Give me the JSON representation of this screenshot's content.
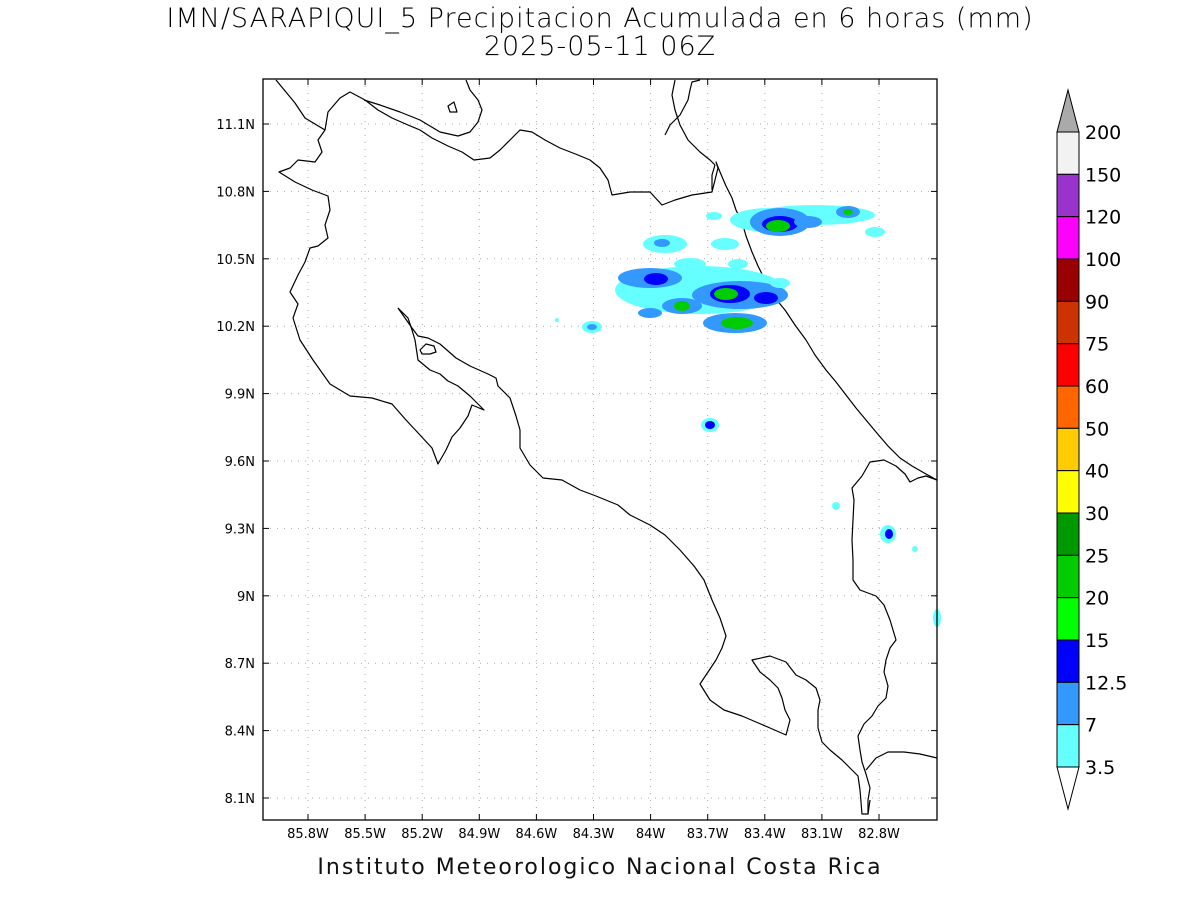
{
  "title": {
    "line1": "IMN/SARAPIQUI_5 Precipitacion Acumulada en 6 horas (mm)",
    "line2": "2025-05-11 06Z"
  },
  "map": {
    "lon_labels": [
      "85.8W",
      "85.5W",
      "85.2W",
      "84.9W",
      "84.6W",
      "84.3W",
      "84W",
      "83.7W",
      "83.4W",
      "83.1W",
      "82.8W"
    ],
    "lat_labels": [
      "11.1N",
      "10.8N",
      "10.5N",
      "10.2N",
      "9.9N",
      "9.6N",
      "9.3N",
      "9N",
      "8.7N",
      "8.4N",
      "8.1N"
    ],
    "grid": true
  },
  "colorbar": {
    "labels": [
      "200",
      "150",
      "120",
      "100",
      "90",
      "75",
      "60",
      "50",
      "40",
      "30",
      "25",
      "20",
      "15",
      "12.5",
      "7",
      "3.5"
    ],
    "colors": [
      "#f2f2f2",
      "#9933cc",
      "#ff00ff",
      "#990000",
      "#cc3300",
      "#ff0000",
      "#ff6600",
      "#ffcc00",
      "#ffff00",
      "#009900",
      "#00cc00",
      "#00ff00",
      "#0000ff",
      "#3399ff",
      "#66ffff"
    ],
    "over_color": "#aaaaaa",
    "under_color": "#ffffff"
  },
  "footer": "Instituto Meteorologico Nacional Costa Rica"
}
